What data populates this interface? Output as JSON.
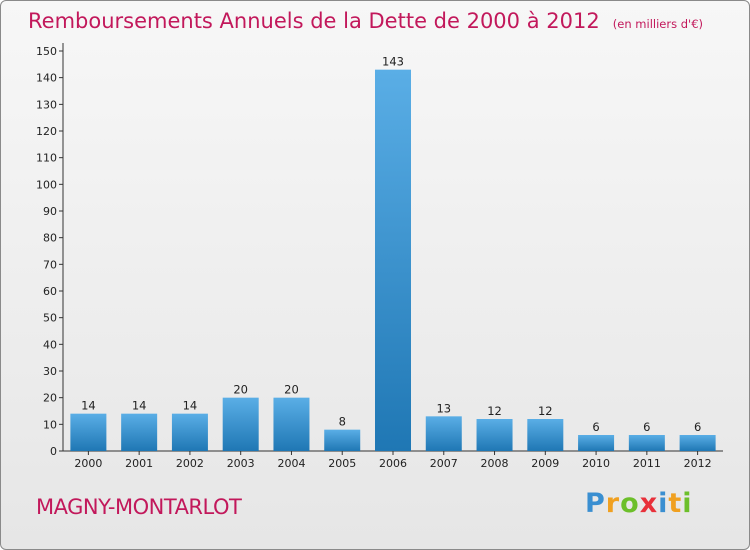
{
  "chart_data": {
    "type": "bar",
    "title": "Remboursements Annuels de la Dette de 2000 à 2012",
    "subtitle": "(en milliers d'€)",
    "categories": [
      "2000",
      "2001",
      "2002",
      "2003",
      "2004",
      "2005",
      "2006",
      "2007",
      "2008",
      "2009",
      "2010",
      "2011",
      "2012"
    ],
    "values": [
      14,
      14,
      14,
      20,
      20,
      8,
      143,
      13,
      12,
      12,
      6,
      6,
      6
    ],
    "xlabel": "",
    "ylabel": "",
    "ylim": [
      0,
      150
    ],
    "yticks": [
      0,
      10,
      20,
      30,
      40,
      50,
      60,
      70,
      80,
      90,
      100,
      110,
      120,
      130,
      140,
      150
    ],
    "grid": false
  },
  "commune": "MAGNY-MONTARLOT",
  "logo": {
    "text": "Proxiti",
    "letters": [
      "P",
      "r",
      "o",
      "x",
      "i",
      "t",
      "i"
    ]
  },
  "colors": {
    "bar_light": "#5aaee6",
    "bar_dark": "#1f77b4",
    "title": "#c2185b"
  }
}
